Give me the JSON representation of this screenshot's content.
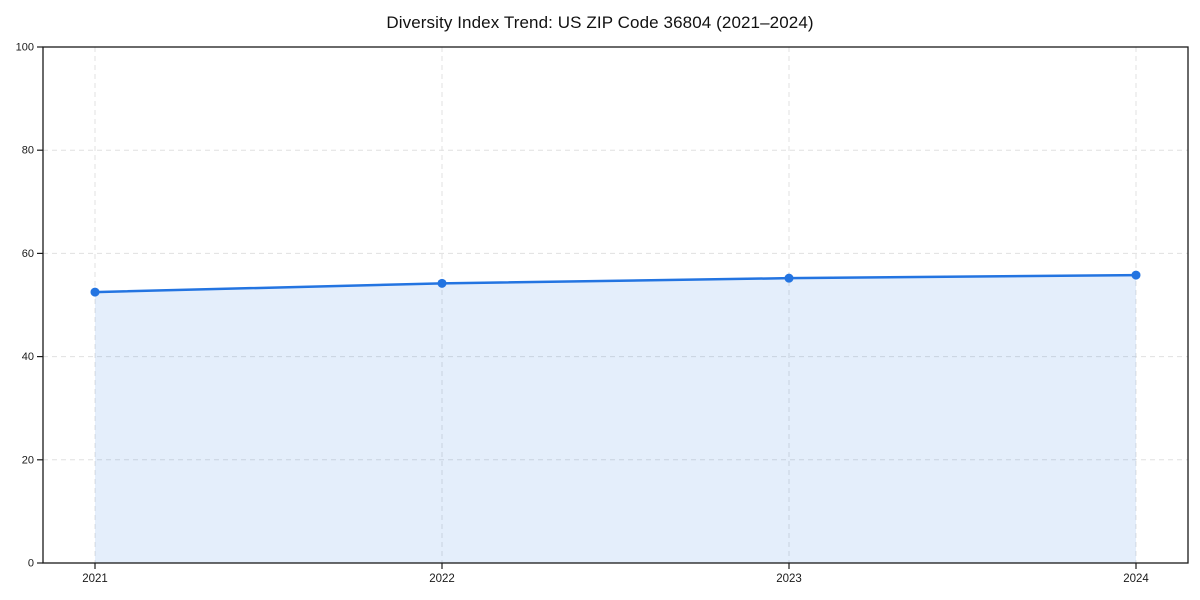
{
  "figure": {
    "background_color": "#ffffff"
  },
  "chart_data": {
    "type": "line",
    "title": "Diversity Index Trend: US ZIP Code 36804 (2021–2024)",
    "categories": [
      "2021",
      "2022",
      "2023",
      "2024"
    ],
    "values": [
      52.5,
      54.2,
      55.2,
      55.8
    ],
    "xlabel": "",
    "ylabel": "",
    "ylim": [
      0,
      100
    ],
    "yticks": [
      0,
      20,
      40,
      60,
      80,
      100
    ],
    "grid": "dashed-both-axes",
    "legend": "none",
    "marker": "circle",
    "area_fill": true,
    "colors": {
      "line": "#2374e1",
      "marker": "#2374e1",
      "fill": "#2374e1",
      "fill_opacity": 0.12,
      "grid": "#e0e0e0",
      "axis": "#1a1a1a",
      "tick_text": "#1a1a1a",
      "title_text": "#111111"
    }
  }
}
